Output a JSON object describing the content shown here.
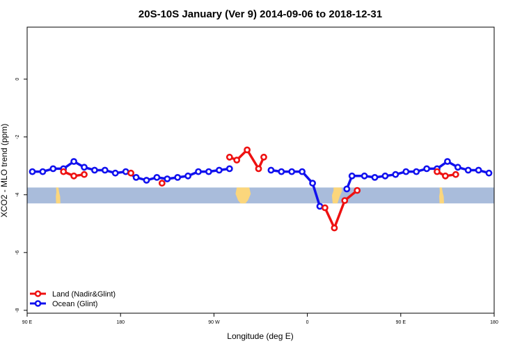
{
  "chart_data": {
    "type": "line",
    "title": "20S-10S January (Ver 9)   2014-09-06 to 2018-12-31",
    "xlabel": "Longitude (deg E)",
    "ylabel": "XCO2 - MLO trend (ppm)",
    "xlim": [
      90,
      540
    ],
    "ylim": [
      -8.1,
      1.8
    ],
    "x_ticks": [
      {
        "value": 90,
        "label": "90 E"
      },
      {
        "value": 180,
        "label": "180"
      },
      {
        "value": 270,
        "label": "90 W"
      },
      {
        "value": 360,
        "label": "0"
      },
      {
        "value": 450,
        "label": "90 E"
      },
      {
        "value": 540,
        "label": "180"
      }
    ],
    "y_ticks": [
      {
        "value": 0,
        "label": "0"
      },
      {
        "value": -2,
        "label": "-2"
      },
      {
        "value": -4,
        "label": "-4"
      },
      {
        "value": -6,
        "label": "-6"
      },
      {
        "value": -8,
        "label": "-8"
      }
    ],
    "land_band": {
      "y_top": -3.75,
      "y_bottom": -4.3,
      "ocean_color": "#a9bcdb",
      "land_color": "#fbd67c"
    },
    "series": [
      {
        "name": "Land (Nadir&Glint)",
        "color": "#ee1111",
        "segments": [
          [
            [
              125,
              -3.2
            ],
            [
              135,
              -3.35
            ],
            [
              145,
              -3.3
            ]
          ],
          [
            [
              190,
              -3.25
            ]
          ],
          [
            [
              220,
              -3.6
            ]
          ],
          [
            [
              285,
              -2.7
            ],
            [
              292,
              -2.8
            ],
            [
              302,
              -2.45
            ],
            [
              313,
              -3.1
            ],
            [
              318,
              -2.7
            ]
          ],
          [
            [
              377,
              -4.45
            ],
            [
              386,
              -5.15
            ],
            [
              396,
              -4.2
            ],
            [
              408,
              -3.85
            ]
          ],
          [
            [
              485,
              -3.2
            ],
            [
              493,
              -3.35
            ],
            [
              503,
              -3.3
            ]
          ]
        ]
      },
      {
        "name": "Ocean (Glint)",
        "color": "#1111ee",
        "segments": [
          [
            [
              95,
              -3.2
            ],
            [
              105,
              -3.2
            ],
            [
              115,
              -3.1
            ],
            [
              125,
              -3.1
            ],
            [
              135,
              -2.85
            ],
            [
              145,
              -3.05
            ],
            [
              155,
              -3.15
            ],
            [
              165,
              -3.15
            ],
            [
              175,
              -3.25
            ],
            [
              185,
              -3.2
            ],
            [
              195,
              -3.4
            ],
            [
              205,
              -3.5
            ],
            [
              215,
              -3.4
            ],
            [
              225,
              -3.45
            ],
            [
              235,
              -3.4
            ],
            [
              245,
              -3.35
            ],
            [
              255,
              -3.2
            ],
            [
              265,
              -3.2
            ],
            [
              275,
              -3.15
            ],
            [
              285,
              -3.1
            ]
          ],
          [
            [
              325,
              -3.15
            ],
            [
              335,
              -3.2
            ],
            [
              345,
              -3.2
            ],
            [
              355,
              -3.2
            ],
            [
              365,
              -3.6
            ],
            [
              372,
              -4.4
            ]
          ],
          [
            [
              398,
              -3.8
            ],
            [
              403,
              -3.35
            ],
            [
              415,
              -3.35
            ],
            [
              425,
              -3.4
            ],
            [
              435,
              -3.35
            ],
            [
              445,
              -3.3
            ],
            [
              455,
              -3.2
            ],
            [
              465,
              -3.2
            ],
            [
              475,
              -3.1
            ],
            [
              485,
              -3.1
            ],
            [
              495,
              -2.85
            ],
            [
              505,
              -3.05
            ],
            [
              515,
              -3.15
            ],
            [
              525,
              -3.15
            ],
            [
              535,
              -3.25
            ]
          ]
        ]
      }
    ]
  }
}
